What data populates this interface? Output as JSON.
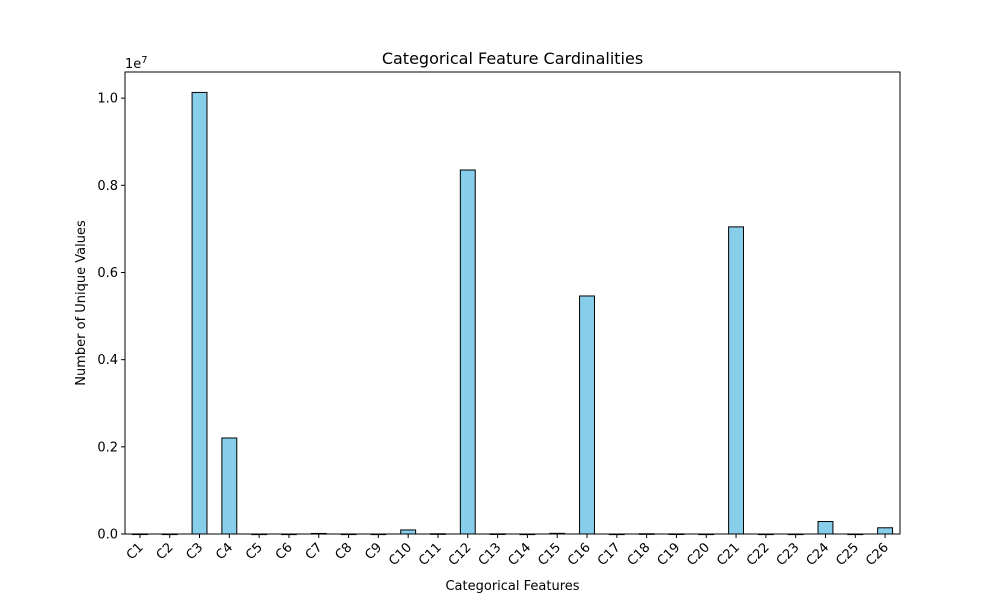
{
  "chart_data": {
    "type": "bar",
    "title": "Categorical Feature Cardinalities",
    "xlabel": "Categorical Features",
    "ylabel": "Number of Unique Values",
    "y_multiplier_label": "1e7",
    "categories": [
      "C1",
      "C2",
      "C3",
      "C4",
      "C5",
      "C6",
      "C7",
      "C8",
      "C9",
      "C10",
      "C11",
      "C12",
      "C13",
      "C14",
      "C15",
      "C16",
      "C17",
      "C18",
      "C19",
      "C20",
      "C21",
      "C22",
      "C23",
      "C24",
      "C25",
      "C26"
    ],
    "values": [
      1460,
      583,
      10131227,
      2202608,
      305,
      24,
      12517,
      633,
      3,
      93145,
      5683,
      8351593,
      3194,
      27,
      14992,
      5461306,
      10,
      5652,
      2173,
      4,
      7046547,
      18,
      15,
      286181,
      105,
      142572
    ],
    "ylim": [
      0,
      10600000
    ],
    "y_ticks": [
      0,
      2000000,
      4000000,
      6000000,
      8000000,
      10000000
    ],
    "y_tick_labels": [
      "0.0",
      "0.2",
      "0.4",
      "0.6",
      "0.8",
      "1.0"
    ],
    "bar_color": "#87CEEB",
    "edge_color": "#000000",
    "grid": false,
    "legend": "none"
  }
}
